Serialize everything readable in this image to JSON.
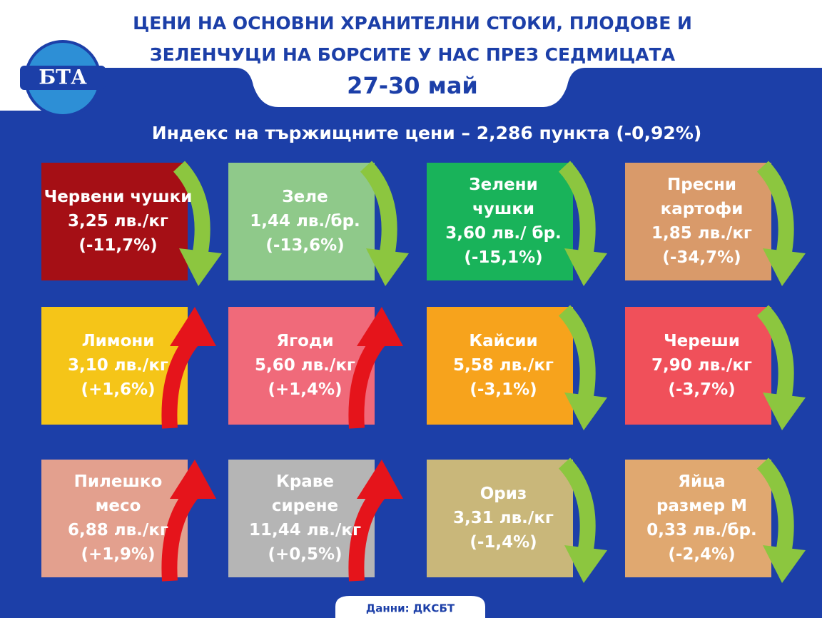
{
  "logo": "БТА",
  "header": {
    "title_lines": [
      "ЦЕНИ НА ОСНОВНИ ХРАНИТЕЛНИ СТОКИ, ПЛОДОВЕ И",
      "ЗЕЛЕНЧУЦИ НА БОРСИТЕ У НАС ПРЕЗ СЕДМИЦАТА"
    ],
    "date": "27-30 май"
  },
  "index": "Индекс на тържищните цени – 2,286 пункта (-0,92%)",
  "tiles": [
    {
      "name": [
        "Червени чушки"
      ],
      "price": "3,25 лв./кг",
      "change": "(-11,7%)"
    },
    {
      "name": [
        "Зеле"
      ],
      "price": "1,44 лв./бр.",
      "change": "(-13,6%)"
    },
    {
      "name": [
        "Зелени",
        "чушки"
      ],
      "price": "3,60 лв./ бр.",
      "change": "(-15,1%)"
    },
    {
      "name": [
        "Пресни",
        "картофи"
      ],
      "price": "1,85 лв./кг",
      "change": "(-34,7%)"
    },
    {
      "name": [
        "Лимони"
      ],
      "price": "3,10 лв./кг",
      "change": "(+1,6%)"
    },
    {
      "name": [
        "Ягоди"
      ],
      "price": "5,60 лв./кг",
      "change": "(+1,4%)"
    },
    {
      "name": [
        "Кайсии"
      ],
      "price": "5,58 лв./кг",
      "change": "(-3,1%)"
    },
    {
      "name": [
        "Череши"
      ],
      "price": "7,90 лв./кг",
      "change": "(-3,7%)"
    },
    {
      "name": [
        "Пилешко",
        "месо"
      ],
      "price": "6,88 лв./кг",
      "change": "(+1,9%)"
    },
    {
      "name": [
        "Краве",
        "сирене"
      ],
      "price": "11,44 лв./кг",
      "change": "(+0,5%)"
    },
    {
      "name": [
        "Ориз"
      ],
      "price": "3,31 лв./кг",
      "change": "(-1,4%)"
    },
    {
      "name": [
        "Яйца",
        "размер М"
      ],
      "price": "0,33 лв./бр.",
      "change": "(-2,4%)"
    }
  ],
  "source": "Данни: ДКСБТ"
}
